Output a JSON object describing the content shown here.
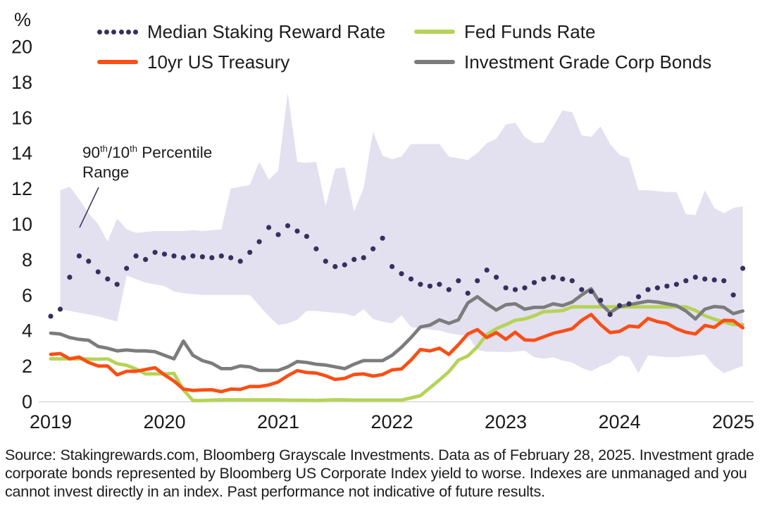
{
  "legend": {
    "items": [
      {
        "label": "Median Staking Reward Rate",
        "style": "dotted",
        "color": "#36305f"
      },
      {
        "label": "Fed Funds Rate",
        "style": "solid",
        "color": "#b5d356"
      },
      {
        "label": "10yr US Treasury",
        "style": "solid",
        "color": "#f94f16"
      },
      {
        "label": "Investment Grade Corp Bonds",
        "style": "solid",
        "color": "#7c7c7c"
      }
    ]
  },
  "annotation": {
    "part1": "90",
    "sup1": "th",
    "part2": "/10",
    "sup2": "th",
    "part3": " Percentile",
    "line2": "Range",
    "color": "#36305f"
  },
  "chart_data": {
    "type": "line",
    "title": "",
    "ylabel": "%",
    "ylim": [
      0,
      20
    ],
    "yticks": [
      0,
      2,
      4,
      6,
      8,
      10,
      12,
      14,
      16,
      18,
      20
    ],
    "xticks": [
      "2019",
      "2020",
      "2021",
      "2022",
      "2023",
      "2024",
      "2025"
    ],
    "x_start": "2019-01",
    "x_end": "2025-02",
    "x_frequency": "monthly",
    "grid": false,
    "legend_position": "top",
    "axis_line_color": "#d8d8d8",
    "band": {
      "name": "90th/10th Percentile Range",
      "color": "#e3e0f0",
      "upper": [
        null,
        11.9,
        12.1,
        11.4,
        10.6,
        10.0,
        9.0,
        10.3,
        9.7,
        9.5,
        9.55,
        9.6,
        9.6,
        9.6,
        9.6,
        9.65,
        9.6,
        9.65,
        9.7,
        12.0,
        12.1,
        12.2,
        13.5,
        12.5,
        13.0,
        17.4,
        13.5,
        13.45,
        13.5,
        11.0,
        13.1,
        13.2,
        10.7,
        12.0,
        15.2,
        13.85,
        13.65,
        13.8,
        14.5,
        14.5,
        14.5,
        14.5,
        13.8,
        13.7,
        13.6,
        14.0,
        14.55,
        14.8,
        15.6,
        15.7,
        14.9,
        14.55,
        14.6,
        15.5,
        16.4,
        16.3,
        15.0,
        14.9,
        15.5,
        14.5,
        13.9,
        13.7,
        11.9,
        11.9,
        11.85,
        11.8,
        11.8,
        10.55,
        10.5,
        11.9,
        10.9,
        10.6,
        10.9,
        11.0
      ],
      "lower": [
        null,
        5.2,
        5.1,
        5.0,
        4.9,
        4.8,
        4.65,
        4.5,
        7.1,
        6.9,
        6.7,
        6.6,
        6.5,
        6.2,
        6.1,
        6.05,
        6.0,
        6.0,
        6.0,
        6.0,
        6.0,
        6.0,
        5.4,
        4.8,
        4.3,
        4.4,
        4.6,
        5.1,
        5.1,
        5.05,
        5.0,
        4.95,
        4.8,
        5.2,
        4.65,
        4.5,
        4.4,
        4.85,
        4.2,
        4.1,
        4.05,
        4.0,
        3.85,
        3.75,
        3.7,
        2.9,
        2.8,
        2.8,
        2.78,
        2.8,
        2.86,
        2.5,
        2.4,
        2.5,
        2.3,
        2.2,
        1.9,
        1.7,
        2.0,
        2.18,
        2.6,
        2.5,
        1.6,
        2.6,
        2.55,
        2.5,
        2.5,
        2.55,
        2.6,
        2.65,
        2.0,
        1.6,
        1.8,
        2.0
      ]
    },
    "series": [
      {
        "name": "Fed Funds Rate",
        "color": "#b5d356",
        "style": "solid",
        "values": [
          2.4,
          2.4,
          2.4,
          2.4,
          2.39,
          2.38,
          2.4,
          2.13,
          2.04,
          1.83,
          1.55,
          1.55,
          1.55,
          1.58,
          0.65,
          0.05,
          0.05,
          0.08,
          0.09,
          0.1,
          0.09,
          0.09,
          0.09,
          0.09,
          0.09,
          0.08,
          0.07,
          0.07,
          0.06,
          0.08,
          0.1,
          0.09,
          0.08,
          0.08,
          0.08,
          0.08,
          0.08,
          0.08,
          0.2,
          0.33,
          0.77,
          1.21,
          1.68,
          2.33,
          2.56,
          3.08,
          3.78,
          4.1,
          4.33,
          4.57,
          4.65,
          4.83,
          5.06,
          5.08,
          5.12,
          5.33,
          5.33,
          5.33,
          5.33,
          5.33,
          5.33,
          5.33,
          5.33,
          5.33,
          5.33,
          5.33,
          5.33,
          5.33,
          5.13,
          4.83,
          4.64,
          4.48,
          4.33,
          4.33
        ]
      },
      {
        "name": "10yr US Treasury",
        "color": "#f94f16",
        "style": "solid",
        "values": [
          2.65,
          2.7,
          2.4,
          2.5,
          2.2,
          2.0,
          2.0,
          1.5,
          1.7,
          1.7,
          1.8,
          1.9,
          1.5,
          1.15,
          0.7,
          0.62,
          0.65,
          0.66,
          0.55,
          0.7,
          0.68,
          0.85,
          0.84,
          0.93,
          1.1,
          1.45,
          1.74,
          1.63,
          1.6,
          1.45,
          1.24,
          1.3,
          1.52,
          1.55,
          1.43,
          1.52,
          1.78,
          1.83,
          2.33,
          2.93,
          2.85,
          3.0,
          2.65,
          3.2,
          3.8,
          4.05,
          3.6,
          3.88,
          3.5,
          3.9,
          3.47,
          3.45,
          3.64,
          3.84,
          3.96,
          4.1,
          4.57,
          4.9,
          4.33,
          3.88,
          3.95,
          4.25,
          4.2,
          4.68,
          4.5,
          4.4,
          4.1,
          3.9,
          3.8,
          4.28,
          4.18,
          4.57,
          4.55,
          4.15
        ]
      },
      {
        "name": "Investment Grade Corp Bonds",
        "color": "#7c7c7c",
        "style": "solid",
        "values": [
          3.85,
          3.8,
          3.6,
          3.5,
          3.45,
          3.1,
          3.0,
          2.85,
          2.9,
          2.85,
          2.85,
          2.8,
          2.6,
          2.4,
          3.4,
          2.6,
          2.3,
          2.15,
          1.85,
          1.85,
          2.0,
          1.95,
          1.75,
          1.75,
          1.75,
          1.95,
          2.25,
          2.2,
          2.1,
          2.05,
          1.95,
          1.85,
          2.1,
          2.3,
          2.3,
          2.3,
          2.6,
          3.05,
          3.6,
          4.2,
          4.3,
          4.6,
          4.4,
          4.6,
          5.55,
          5.9,
          5.5,
          5.15,
          5.45,
          5.5,
          5.2,
          5.3,
          5.3,
          5.5,
          5.4,
          5.6,
          6.0,
          6.35,
          5.5,
          5.0,
          5.35,
          5.45,
          5.55,
          5.65,
          5.6,
          5.5,
          5.4,
          5.1,
          4.65,
          5.2,
          5.35,
          5.3,
          4.95,
          5.1
        ]
      },
      {
        "name": "Median Staking Reward Rate",
        "color": "#36305f",
        "style": "dotted",
        "values": [
          4.8,
          5.2,
          7.0,
          8.2,
          7.9,
          7.3,
          6.9,
          6.6,
          7.5,
          8.2,
          8.0,
          8.4,
          8.3,
          8.2,
          8.1,
          8.2,
          8.15,
          8.1,
          8.2,
          8.1,
          7.9,
          8.4,
          9.0,
          9.8,
          9.4,
          9.9,
          9.6,
          9.3,
          8.6,
          7.9,
          7.6,
          7.7,
          8.0,
          8.1,
          8.6,
          9.2,
          7.6,
          7.2,
          6.9,
          6.6,
          6.5,
          6.6,
          6.3,
          6.8,
          6.1,
          6.8,
          7.4,
          7.0,
          6.4,
          6.3,
          6.4,
          6.7,
          6.9,
          7.0,
          6.9,
          6.8,
          6.3,
          6.2,
          5.7,
          4.9,
          5.4,
          5.5,
          5.9,
          6.3,
          6.4,
          6.5,
          6.6,
          6.8,
          7.0,
          6.9,
          6.85,
          6.8,
          6.0,
          7.5
        ]
      }
    ]
  },
  "footer": {
    "source_text": "Source: Stakingrewards.com, Bloomberg Grayscale Investments. Data as of February 28, 2025. Investment grade corporate bonds represented by Bloomberg US Corporate Index yield to worse. Indexes are unmanaged and you cannot invest directly in an index. Past performance not indicative of future results."
  }
}
